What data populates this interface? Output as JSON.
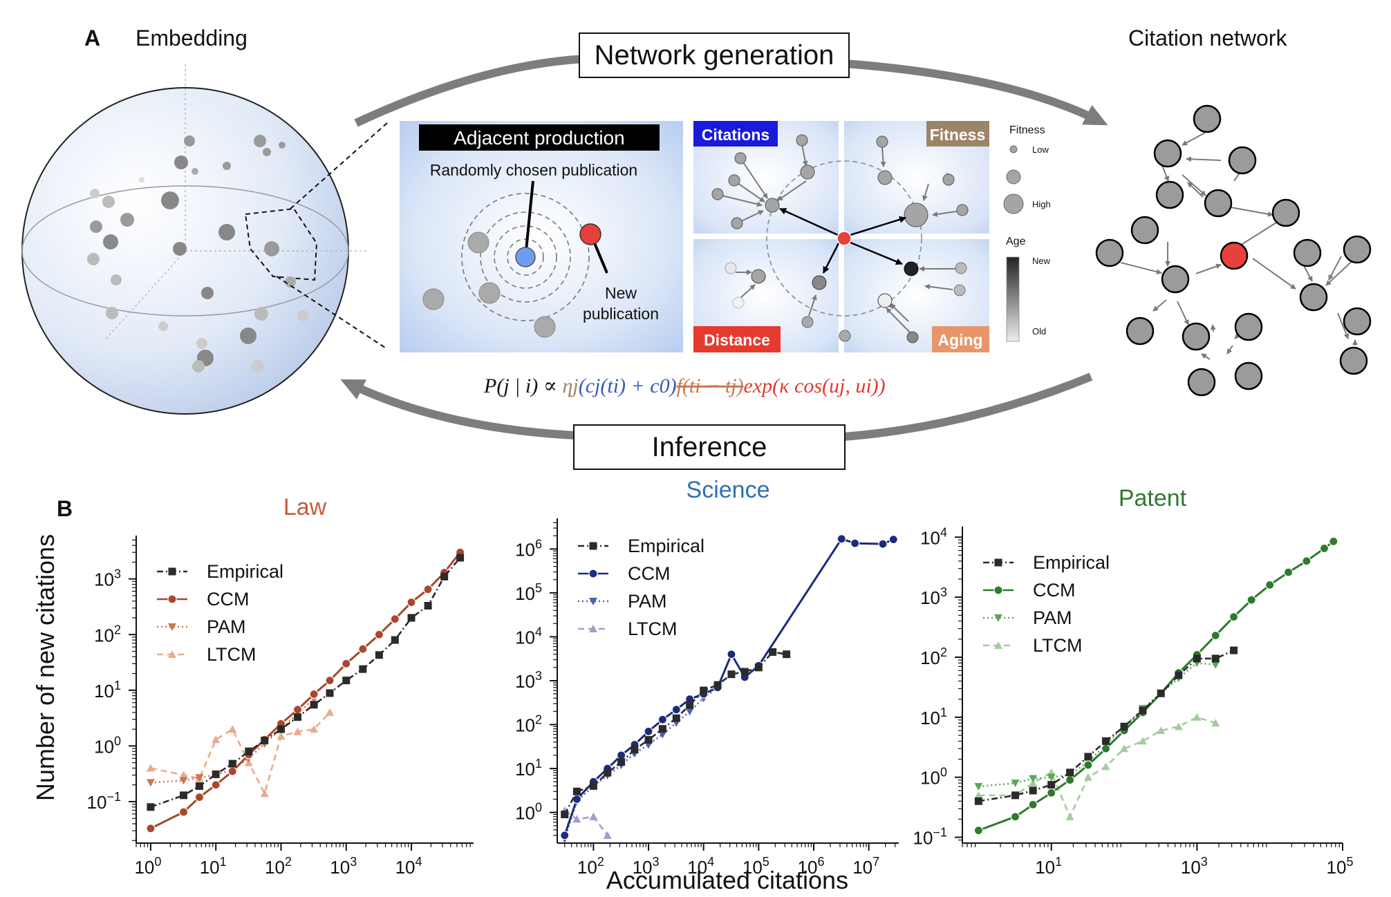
{
  "panel_a": {
    "letter": "A",
    "embedding_title": "Embedding",
    "citation_network_title": "Citation network",
    "network_generation_label": "Network generation",
    "inference_label": "Inference",
    "adjacent": {
      "title": "Adjacent production",
      "random_label": "Randomly chosen publication",
      "new_label_1": "New",
      "new_label_2": "publication"
    },
    "quadrants": {
      "citations": "Citations",
      "fitness": "Fitness",
      "distance": "Distance",
      "aging": "Aging"
    },
    "legend": {
      "fitness_title": "Fitness",
      "low": "Low",
      "high": "High",
      "age_title": "Age",
      "new": "New",
      "old": "Old"
    },
    "formula": {
      "lhs": "P(j | i) ∝ ",
      "fitness_term": "ηj",
      "citation_term": "(cj(ti) + c0)",
      "aging_term": "f(ti − tj)",
      "distance_term": "exp(κ cos(uj, ui))"
    },
    "colors": {
      "citations": "#1a1adb",
      "fitness": "#9c8468",
      "distance": "#e63a2e",
      "aging": "#e8956a",
      "red_node": "#e8403a",
      "blue_node": "#6f9cf0"
    }
  },
  "panel_b": {
    "letter": "B",
    "ylabel": "Number of new citations",
    "xlabel": "Accumulated citations"
  },
  "chart_data": [
    {
      "type": "line",
      "title": "Law",
      "title_color": "#c75b39",
      "xscale": "log",
      "yscale": "log",
      "xlim": [
        0.6,
        90000
      ],
      "ylim": [
        0.018,
        6000
      ],
      "xticks": [
        1,
        10,
        100,
        1000,
        10000
      ],
      "xtick_labels": [
        "10^0",
        "10^1",
        "10^2",
        "10^3",
        "10^4"
      ],
      "yticks": [
        0.1,
        1,
        10,
        100,
        1000
      ],
      "ytick_labels": [
        "10^-1",
        "10^0",
        "10^1",
        "10^2",
        "10^3"
      ],
      "legend_position": "upper-left",
      "series": [
        {
          "name": "Empirical",
          "color": "#2b2b2b",
          "style": "dashdot",
          "marker": "square",
          "x": [
            1,
            3.2,
            5.6,
            10,
            18,
            32,
            56,
            100,
            180,
            320,
            560,
            1000,
            1800,
            3200,
            5600,
            10000,
            18000,
            32000,
            56000
          ],
          "y": [
            0.08,
            0.13,
            0.19,
            0.31,
            0.48,
            0.8,
            1.25,
            2.0,
            3.3,
            5.5,
            8.9,
            15,
            24,
            43,
            80,
            200,
            330,
            1100,
            2400
          ]
        },
        {
          "name": "CCM",
          "color": "#a8472a",
          "style": "solid",
          "marker": "circle",
          "x": [
            1,
            3.2,
            5.6,
            10,
            18,
            32,
            56,
            100,
            180,
            320,
            560,
            1000,
            1800,
            3200,
            5600,
            10000,
            18000,
            32000,
            56000
          ],
          "y": [
            0.033,
            0.065,
            0.12,
            0.2,
            0.35,
            0.7,
            1.3,
            2.5,
            4.5,
            8.5,
            15,
            30,
            55,
            100,
            190,
            380,
            650,
            1300,
            3000
          ]
        },
        {
          "name": "PAM",
          "color": "#cc7550",
          "style": "dotted",
          "marker": "triangle-down",
          "x": [
            1,
            3.2,
            5.6,
            10,
            18,
            32,
            56,
            100,
            180,
            320
          ],
          "y": [
            0.22,
            0.24,
            0.27,
            0.3,
            0.38,
            0.6,
            1.1,
            2.0,
            3.8,
            7.0
          ]
        },
        {
          "name": "LTCM",
          "color": "#e8aa8e",
          "style": "dashed",
          "marker": "triangle-up",
          "x": [
            1,
            3.2,
            5.6,
            10,
            18,
            32,
            56,
            100,
            180,
            320,
            560
          ],
          "y": [
            0.4,
            0.3,
            0.26,
            1.3,
            2.0,
            0.5,
            0.14,
            1.5,
            1.8,
            2.0,
            4.0
          ]
        }
      ]
    },
    {
      "type": "line",
      "title": "Science",
      "title_color": "#2f6fb5",
      "xscale": "log",
      "yscale": "log",
      "xlim": [
        22,
        35000000
      ],
      "ylim": [
        0.2,
        5000000
      ],
      "xticks": [
        100,
        1000,
        10000,
        100000,
        1000000,
        10000000
      ],
      "xtick_labels": [
        "10^2",
        "10^3",
        "10^4",
        "10^5",
        "10^6",
        "10^7"
      ],
      "yticks": [
        1,
        10,
        100,
        1000,
        10000,
        100000,
        1000000
      ],
      "ytick_labels": [
        "10^0",
        "10^1",
        "10^2",
        "10^3",
        "10^4",
        "10^5",
        "10^6"
      ],
      "legend_position": "upper-left",
      "series": [
        {
          "name": "Empirical",
          "color": "#2b2b2b",
          "style": "dashdot",
          "marker": "square",
          "x": [
            30,
            50,
            100,
            180,
            320,
            560,
            1000,
            1800,
            3200,
            5600,
            10000,
            18000,
            32000,
            56000,
            100000,
            180000,
            320000
          ],
          "y": [
            0.9,
            3,
            4,
            8,
            14,
            27,
            45,
            80,
            140,
            280,
            600,
            800,
            1400,
            1600,
            2000,
            4500,
            4000
          ]
        },
        {
          "name": "CCM",
          "color": "#1c2b7a",
          "style": "solid",
          "marker": "circle",
          "x": [
            30,
            50,
            100,
            180,
            320,
            560,
            1000,
            1800,
            3200,
            5600,
            10000,
            18000,
            32000,
            56000,
            100000,
            3200000,
            5600000,
            18000000,
            28000000
          ],
          "y": [
            0.3,
            2,
            5,
            10,
            20,
            35,
            70,
            130,
            220,
            380,
            500,
            700,
            4000,
            1200,
            2200,
            1700000,
            1350000,
            1300000,
            1650000
          ]
        },
        {
          "name": "PAM",
          "color": "#4f5fb0",
          "style": "dotted",
          "marker": "triangle-down",
          "x": [
            30,
            50,
            100,
            180,
            320,
            560,
            1000,
            1800,
            3200,
            5600,
            10000,
            18000
          ],
          "y": [
            0.25,
            1.8,
            4,
            7,
            12,
            22,
            35,
            60,
            110,
            200,
            400,
            700
          ]
        },
        {
          "name": "LTCM",
          "color": "#9aa0cc",
          "style": "dashed",
          "marker": "triangle-up",
          "x": [
            30,
            50,
            100,
            180
          ],
          "y": [
            1.1,
            0.7,
            0.8,
            0.3
          ]
        }
      ]
    },
    {
      "type": "line",
      "title": "Patent",
      "title_color": "#2e7a2e",
      "xscale": "log",
      "yscale": "log",
      "xlim": [
        0.6,
        100000
      ],
      "ylim": [
        0.08,
        15000
      ],
      "xticks": [
        10,
        1000,
        100000
      ],
      "xtick_labels": [
        "10^1",
        "10^3",
        "10^5"
      ],
      "yticks": [
        0.1,
        1,
        10,
        100,
        1000,
        10000
      ],
      "ytick_labels": [
        "10^-1",
        "10^0",
        "10^1",
        "10^2",
        "10^3",
        "10^4"
      ],
      "legend_position": "upper-left",
      "series": [
        {
          "name": "Empirical",
          "color": "#2b2b2b",
          "style": "dashdot",
          "marker": "square",
          "x": [
            1,
            3.2,
            5.6,
            10,
            18,
            32,
            56,
            100,
            180,
            320,
            560,
            1000,
            1800,
            3200
          ],
          "y": [
            0.4,
            0.5,
            0.6,
            0.75,
            1.2,
            2.2,
            4,
            7,
            13,
            25,
            50,
            95,
            95,
            130
          ]
        },
        {
          "name": "CCM",
          "color": "#2e7a2e",
          "style": "solid",
          "marker": "circle",
          "x": [
            1,
            3.2,
            5.6,
            10,
            18,
            32,
            56,
            100,
            180,
            320,
            560,
            1000,
            1800,
            3200,
            5600,
            10000,
            18000,
            32000,
            56000,
            75000
          ],
          "y": [
            0.13,
            0.22,
            0.35,
            0.55,
            0.9,
            1.6,
            3,
            6,
            12,
            25,
            55,
            110,
            230,
            470,
            900,
            1600,
            2600,
            4000,
            6500,
            8500
          ]
        },
        {
          "name": "PAM",
          "color": "#5ca65c",
          "style": "dotted",
          "marker": "triangle-down",
          "x": [
            1,
            3.2,
            5.6,
            10,
            18,
            32,
            56,
            100,
            180,
            320,
            560,
            1000,
            1800
          ],
          "y": [
            0.7,
            0.8,
            0.95,
            1.0,
            1.1,
            1.8,
            3.5,
            7,
            14,
            25,
            45,
            80,
            75
          ]
        },
        {
          "name": "LTCM",
          "color": "#a3cc9c",
          "style": "dashed",
          "marker": "triangle-up",
          "x": [
            1,
            3.2,
            5.6,
            10,
            18,
            32,
            56,
            100,
            180,
            320,
            560,
            1000,
            1800
          ],
          "y": [
            0.5,
            0.5,
            0.8,
            1.2,
            0.22,
            1.0,
            1.5,
            3,
            4,
            6,
            7,
            10,
            8
          ]
        }
      ]
    }
  ]
}
